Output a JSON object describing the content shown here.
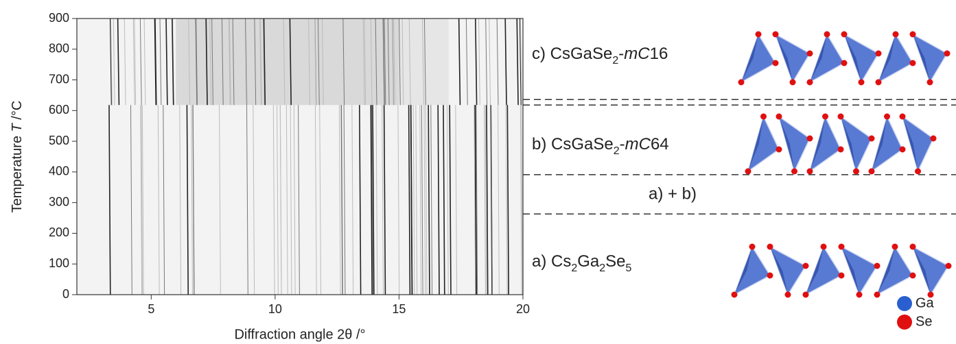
{
  "chart_data": {
    "type": "heatmap",
    "xlabel": "Diffraction angle 2θ /°",
    "ylabel": {
      "text": "Temperature ",
      "italic": "T",
      "unit": " /°C"
    },
    "xlim": [
      2,
      20
    ],
    "xticks": [
      5,
      10,
      15,
      20
    ],
    "ylim": [
      0,
      900
    ],
    "yticks": [
      0,
      100,
      200,
      300,
      400,
      500,
      600,
      700,
      800,
      900
    ],
    "phase_boundaries": [
      636,
      618,
      391,
      263
    ],
    "phases": [
      {
        "prefix": "c) CsGaSe",
        "sub": "2",
        "dash": "-",
        "italic": "mC",
        "end": "16"
      },
      {
        "prefix": "b) CsGaSe",
        "sub": "2",
        "dash": "-",
        "italic": "mC",
        "end": "64"
      },
      {
        "prefix": "a) Cs",
        "sub": "2",
        "mid": "Ga",
        "sub2": "2",
        "mid2": "Se",
        "sub3": "5"
      }
    ],
    "mixed_label": "a) + b)",
    "legend": [
      {
        "name": "Ga",
        "color": "#2a5fd0"
      },
      {
        "name": "Se",
        "color": "#e01010"
      }
    ]
  }
}
